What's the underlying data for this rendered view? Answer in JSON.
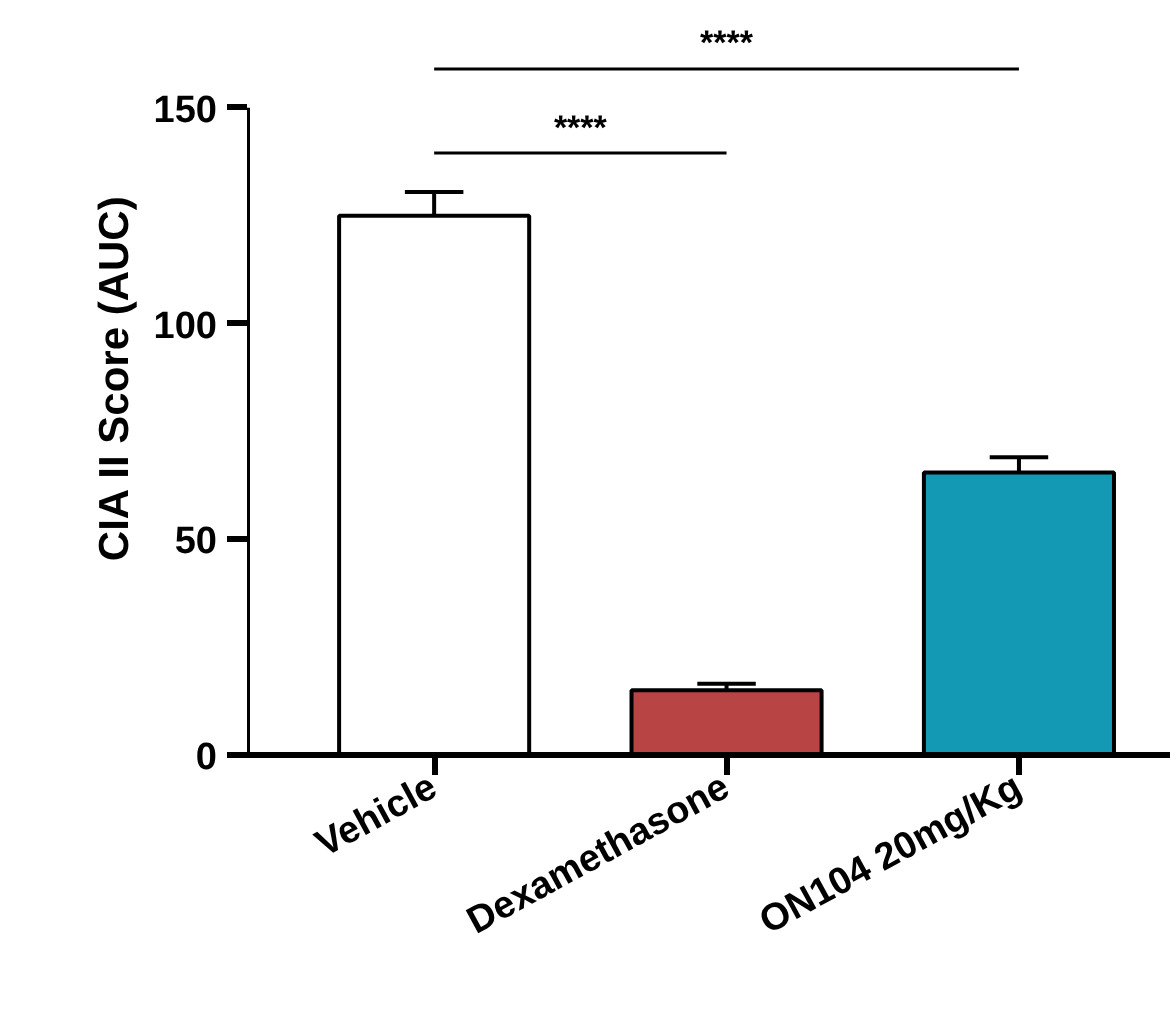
{
  "chart_data": {
    "type": "bar",
    "ylabel": "CIA II Score (AUC)",
    "categories": [
      "Vehicle",
      "Dexamethasone",
      "ON104 20mg/Kg"
    ],
    "values": [
      125,
      15,
      65.5
    ],
    "colors": [
      "#ffffff",
      "#b84444",
      "#1499b5"
    ],
    "errors": [
      [
        125,
        130.5
      ],
      [
        15,
        16.5
      ],
      [
        65.5,
        69
      ]
    ],
    "ylim": [
      0,
      150
    ],
    "yticks": [
      0,
      50,
      100,
      150
    ],
    "grid": false,
    "annotations": [
      "****",
      "****"
    ]
  }
}
